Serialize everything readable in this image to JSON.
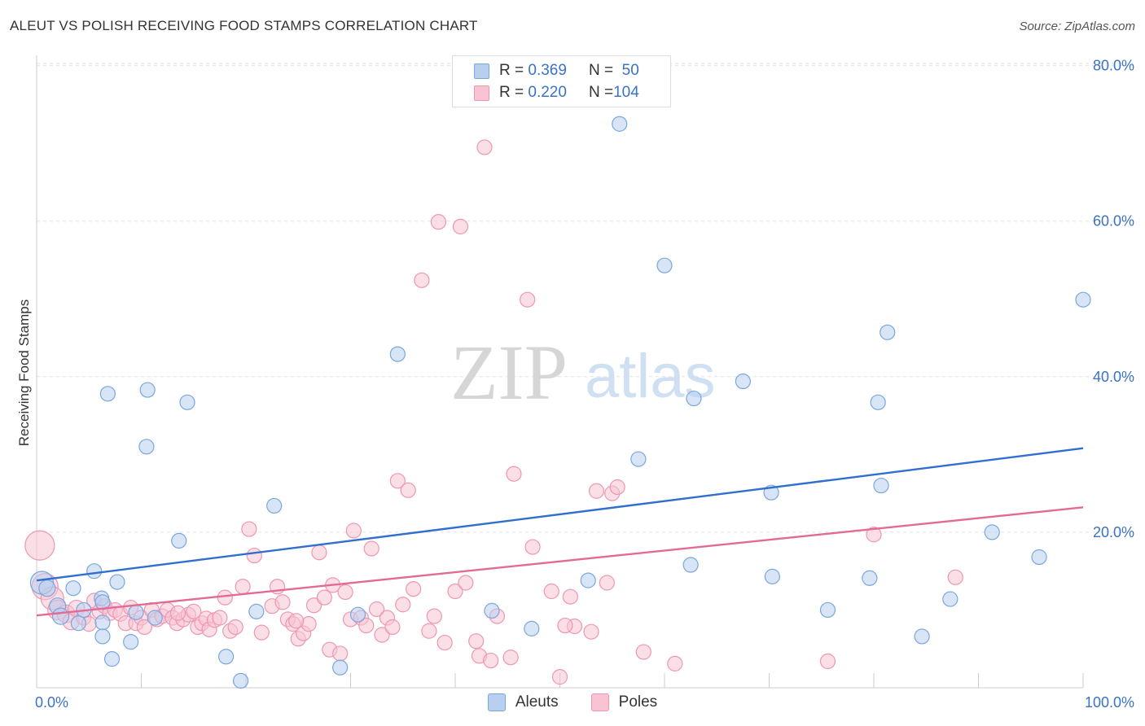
{
  "header": {
    "title": "ALEUT VS POLISH RECEIVING FOOD STAMPS CORRELATION CHART",
    "source": "Source: ZipAtlas.com"
  },
  "legend": {
    "aleut": {
      "r_label": "R = ",
      "r_value": "0.369",
      "n_label": "N = ",
      "n_value": "50"
    },
    "poles": {
      "r_label": "R = ",
      "r_value": "0.220",
      "n_label": "N = ",
      "n_value": "104"
    }
  },
  "bottom_legend": {
    "aleuts": "Aleuts",
    "poles": "Poles"
  },
  "colors": {
    "aleut_fill": "#b8d0f0",
    "aleut_stroke": "#7aa6dd",
    "aleut_line": "#2f6fcf",
    "poles_fill": "#f8c4d4",
    "poles_stroke": "#ee96b2",
    "poles_line": "#e36a95",
    "tick_label": "#3a72c4"
  },
  "watermark": {
    "zip": "ZIP",
    "atlas": "atlas"
  },
  "chart_data": {
    "type": "scatter",
    "title": "ALEUT VS POLISH RECEIVING FOOD STAMPS CORRELATION CHART",
    "xlabel": "",
    "ylabel": "Receiving Food Stamps",
    "xlim": [
      0,
      100
    ],
    "ylim": [
      0,
      84
    ],
    "x_tick_labels": [
      "0.0%",
      "100.0%"
    ],
    "y_ticks": [
      20,
      40,
      60,
      80
    ],
    "y_tick_labels": [
      "20.0%",
      "40.0%",
      "60.0%",
      "80.0%"
    ],
    "grid": "horizontal dashed",
    "legend_position": "top-center",
    "series": [
      {
        "name": "Aleuts",
        "r": 0.369,
        "n": 50,
        "trend": {
          "x": [
            0,
            100
          ],
          "y": [
            13.8,
            30.8
          ]
        },
        "points": [
          [
            0.5,
            13.5,
            14
          ],
          [
            1.0,
            12.8,
            10
          ],
          [
            2.0,
            10.5,
            10
          ],
          [
            2.3,
            9.2,
            10
          ],
          [
            3.5,
            12.8,
            9
          ],
          [
            4.0,
            8.3,
            9
          ],
          [
            4.5,
            10.0,
            9
          ],
          [
            5.5,
            15.0,
            9
          ],
          [
            6.2,
            11.5,
            9
          ],
          [
            6.3,
            11.0,
            9
          ],
          [
            6.3,
            8.4,
            9
          ],
          [
            6.3,
            6.6,
            9
          ],
          [
            7.2,
            3.7,
            9
          ],
          [
            7.7,
            13.6,
            9
          ],
          [
            6.8,
            37.8,
            9
          ],
          [
            9.0,
            5.9,
            9
          ],
          [
            9.5,
            9.7,
            9
          ],
          [
            10.5,
            31.0,
            9
          ],
          [
            10.6,
            38.3,
            9
          ],
          [
            11.3,
            9.0,
            9
          ],
          [
            13.6,
            18.9,
            9
          ],
          [
            14.4,
            36.7,
            9
          ],
          [
            18.1,
            4.0,
            9
          ],
          [
            19.5,
            0.9,
            9
          ],
          [
            21.0,
            9.8,
            9
          ],
          [
            22.7,
            23.4,
            9
          ],
          [
            29.0,
            2.6,
            9
          ],
          [
            30.7,
            9.4,
            9
          ],
          [
            34.5,
            42.9,
            9
          ],
          [
            43.5,
            9.9,
            9
          ],
          [
            47.3,
            7.6,
            9
          ],
          [
            52.7,
            13.8,
            9
          ],
          [
            55.7,
            72.5,
            9
          ],
          [
            57.5,
            29.4,
            9
          ],
          [
            60.0,
            54.3,
            9
          ],
          [
            62.5,
            15.8,
            9
          ],
          [
            62.8,
            37.2,
            9
          ],
          [
            67.5,
            39.4,
            9
          ],
          [
            70.2,
            25.1,
            9
          ],
          [
            70.3,
            14.3,
            9
          ],
          [
            75.6,
            10.0,
            9
          ],
          [
            79.6,
            14.1,
            9
          ],
          [
            80.4,
            36.7,
            9
          ],
          [
            80.7,
            26.0,
            9
          ],
          [
            81.3,
            45.7,
            9
          ],
          [
            84.6,
            6.6,
            9
          ],
          [
            87.3,
            11.4,
            9
          ],
          [
            91.3,
            20.0,
            9
          ],
          [
            95.8,
            16.8,
            9
          ],
          [
            100.0,
            49.9,
            9
          ]
        ]
      },
      {
        "name": "Poles",
        "r": 0.22,
        "n": 104,
        "trend": {
          "x": [
            0,
            100
          ],
          "y": [
            9.3,
            23.2
          ]
        },
        "points": [
          [
            0.3,
            18.3,
            18
          ],
          [
            0.8,
            13.0,
            16
          ],
          [
            1.5,
            11.5,
            14
          ],
          [
            2.0,
            10.0,
            12
          ],
          [
            2.8,
            9.5,
            11
          ],
          [
            3.3,
            8.5,
            10
          ],
          [
            3.8,
            10.2,
            10
          ],
          [
            4.5,
            9.0,
            9
          ],
          [
            5.0,
            8.2,
            9
          ],
          [
            5.5,
            11.2,
            9
          ],
          [
            6.0,
            9.8,
            9
          ],
          [
            6.5,
            10.5,
            9
          ],
          [
            7.0,
            9.6,
            9
          ],
          [
            7.5,
            10.0,
            9
          ],
          [
            8.0,
            9.5,
            9
          ],
          [
            8.5,
            8.3,
            9
          ],
          [
            9.0,
            10.3,
            9
          ],
          [
            9.5,
            8.3,
            9
          ],
          [
            10.0,
            9.0,
            9
          ],
          [
            10.3,
            7.8,
            9
          ],
          [
            11.0,
            10.0,
            9
          ],
          [
            11.5,
            8.8,
            9
          ],
          [
            12.0,
            9.2,
            9
          ],
          [
            12.5,
            10.0,
            9
          ],
          [
            13.0,
            9.0,
            9
          ],
          [
            13.4,
            8.3,
            9
          ],
          [
            14.0,
            8.8,
            9
          ],
          [
            14.5,
            9.4,
            9
          ],
          [
            15.0,
            9.8,
            9
          ],
          [
            15.4,
            7.8,
            9
          ],
          [
            15.8,
            8.3,
            9
          ],
          [
            16.2,
            8.9,
            9
          ],
          [
            16.5,
            7.5,
            9
          ],
          [
            17.0,
            8.7,
            9
          ],
          [
            17.5,
            9.0,
            9
          ],
          [
            18.0,
            11.6,
            9
          ],
          [
            18.5,
            7.3,
            9
          ],
          [
            19.0,
            7.8,
            9
          ],
          [
            19.7,
            13.0,
            9
          ],
          [
            20.3,
            20.4,
            9
          ],
          [
            20.8,
            17.0,
            9
          ],
          [
            21.5,
            7.1,
            9
          ],
          [
            22.5,
            10.5,
            9
          ],
          [
            23.0,
            13.0,
            9
          ],
          [
            23.5,
            11.0,
            9
          ],
          [
            24.0,
            8.8,
            9
          ],
          [
            24.5,
            8.2,
            9
          ],
          [
            25.0,
            6.3,
            9
          ],
          [
            25.5,
            7.0,
            9
          ],
          [
            26.0,
            8.2,
            9
          ],
          [
            26.5,
            10.6,
            9
          ],
          [
            27.0,
            17.4,
            9
          ],
          [
            27.5,
            11.6,
            9
          ],
          [
            28.0,
            4.9,
            9
          ],
          [
            28.3,
            13.2,
            9
          ],
          [
            29.0,
            4.4,
            9
          ],
          [
            29.5,
            12.3,
            9
          ],
          [
            30.0,
            8.8,
            9
          ],
          [
            30.3,
            20.2,
            9
          ],
          [
            31.0,
            9.0,
            9
          ],
          [
            31.5,
            8.0,
            9
          ],
          [
            32.0,
            17.9,
            9
          ],
          [
            32.5,
            10.1,
            9
          ],
          [
            33.0,
            6.8,
            9
          ],
          [
            33.5,
            9.0,
            9
          ],
          [
            34.0,
            7.8,
            9
          ],
          [
            34.5,
            26.6,
            9
          ],
          [
            35.0,
            10.7,
            9
          ],
          [
            35.5,
            25.4,
            9
          ],
          [
            36.0,
            12.7,
            9
          ],
          [
            36.8,
            52.4,
            9
          ],
          [
            37.5,
            7.3,
            9
          ],
          [
            38.0,
            9.2,
            9
          ],
          [
            38.4,
            59.9,
            9
          ],
          [
            39.0,
            5.8,
            9
          ],
          [
            40.0,
            12.4,
            9
          ],
          [
            40.5,
            59.3,
            9
          ],
          [
            41.0,
            13.5,
            9
          ],
          [
            42.0,
            6.0,
            9
          ],
          [
            42.3,
            4.1,
            9
          ],
          [
            42.8,
            69.5,
            9
          ],
          [
            43.4,
            3.5,
            9
          ],
          [
            44.0,
            9.2,
            9
          ],
          [
            45.3,
            3.9,
            9
          ],
          [
            45.6,
            27.5,
            9
          ],
          [
            46.9,
            49.9,
            9
          ],
          [
            47.4,
            18.1,
            9
          ],
          [
            49.2,
            12.4,
            9
          ],
          [
            50.0,
            1.4,
            9
          ],
          [
            51.0,
            11.7,
            9
          ],
          [
            51.4,
            7.9,
            9
          ],
          [
            53.0,
            7.2,
            9
          ],
          [
            53.5,
            25.3,
            9
          ],
          [
            54.5,
            13.5,
            9
          ],
          [
            55.0,
            25.0,
            9
          ],
          [
            55.5,
            25.8,
            9
          ],
          [
            58.0,
            4.6,
            9
          ],
          [
            61.0,
            3.1,
            9
          ],
          [
            75.6,
            3.4,
            9
          ],
          [
            80.0,
            19.7,
            9
          ],
          [
            87.8,
            14.2,
            9
          ],
          [
            50.5,
            8.0,
            9
          ],
          [
            13.5,
            9.6,
            9
          ],
          [
            24.8,
            8.6,
            9
          ]
        ]
      }
    ]
  }
}
